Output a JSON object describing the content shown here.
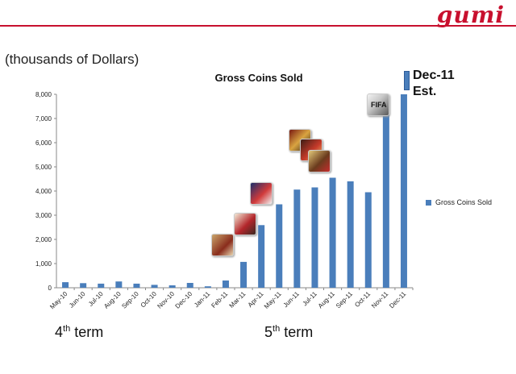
{
  "header": {
    "logo_text": "gumi"
  },
  "labels": {
    "units": "(thousands of Dollars)",
    "est_line1": "Dec-11",
    "est_line2": "Est.",
    "term4_base": "4",
    "term4_sup": "th",
    "term4_rest": " term",
    "term5_base": "5",
    "term5_sup": "th",
    "term5_rest": " term"
  },
  "colors": {
    "bar": "#4a7ebb",
    "accent": "#c8102e"
  },
  "chart_data": {
    "type": "bar",
    "title": "Gross Coins Sold",
    "categories": [
      "May-10",
      "Jun-10",
      "Jul-10",
      "Aug-10",
      "Sep-10",
      "Oct-10",
      "Nov-10",
      "Dec-10",
      "Jan-11",
      "Feb-11",
      "Mar-11",
      "Apr-11",
      "May-11",
      "Jun-11",
      "Jul-11",
      "Aug-11",
      "Sep-11",
      "Oct-11",
      "Nov-11",
      "Dec-11"
    ],
    "series": [
      {
        "name": "Gross Coins Sold",
        "values": [
          230,
          190,
          170,
          260,
          170,
          120,
          100,
          200,
          60,
          300,
          1070,
          2590,
          3450,
          4060,
          4150,
          4550,
          4400,
          3950,
          7150,
          8000
        ]
      }
    ],
    "yticks": [
      "0",
      "1,000",
      "2,000",
      "3,000",
      "4,000",
      "5,000",
      "6,000",
      "7,000",
      "8,000"
    ],
    "ylim": [
      0,
      8000
    ],
    "legend_position": "right",
    "grid": false
  },
  "icons": [
    "game-icon-a",
    "game-icon-b",
    "game-icon-c",
    "game-icon-d",
    "game-icon-e",
    "game-icon-f",
    "game-icon-fifa"
  ]
}
